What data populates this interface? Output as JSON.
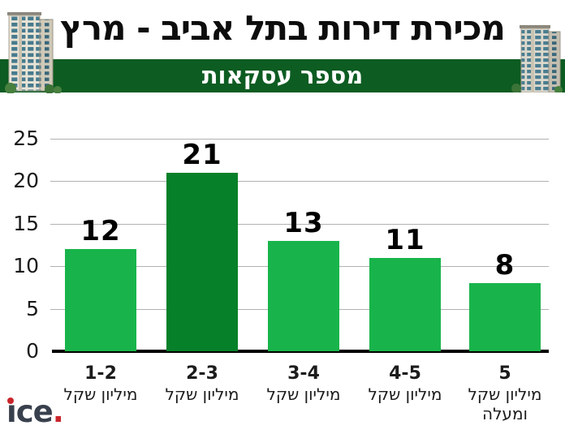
{
  "header": {
    "title": "מכירת דירות בתל אביב - מרץ",
    "subtitle": "מספר עסקאות",
    "band_color": "#0d5c22"
  },
  "chart_data": {
    "type": "bar",
    "title": "מכירת דירות בתל אביב - מרץ",
    "subtitle": "מספר עסקאות",
    "categories": [
      {
        "range": "1-2",
        "unit": "מיליון שקל"
      },
      {
        "range": "2-3",
        "unit": "מיליון שקל"
      },
      {
        "range": "3-4",
        "unit": "מיליון שקל"
      },
      {
        "range": "4-5",
        "unit": "מיליון שקל"
      },
      {
        "range": "5",
        "unit": "מיליון שקל",
        "suffix": "ומעלה"
      }
    ],
    "values": [
      12,
      21,
      13,
      11,
      8
    ],
    "bar_colors": [
      "#18b44b",
      "#068029",
      "#18b44b",
      "#18b44b",
      "#18b44b"
    ],
    "y_ticks": [
      0,
      5,
      10,
      15,
      20,
      25
    ],
    "ylim": [
      0,
      25
    ],
    "grid": true,
    "xlabel": "",
    "ylabel": "",
    "legend": null,
    "grid_color": "#b3b1b1",
    "axis_color": "#000000"
  },
  "logo": {
    "text": "ice.",
    "stem": "ı",
    "rest": "ce",
    "period": ".",
    "text_color": "#39404d",
    "accent_color": "#c9252b"
  },
  "icons": {
    "building_left": "building-tower-photo",
    "building_right": "building-tower-photo"
  }
}
